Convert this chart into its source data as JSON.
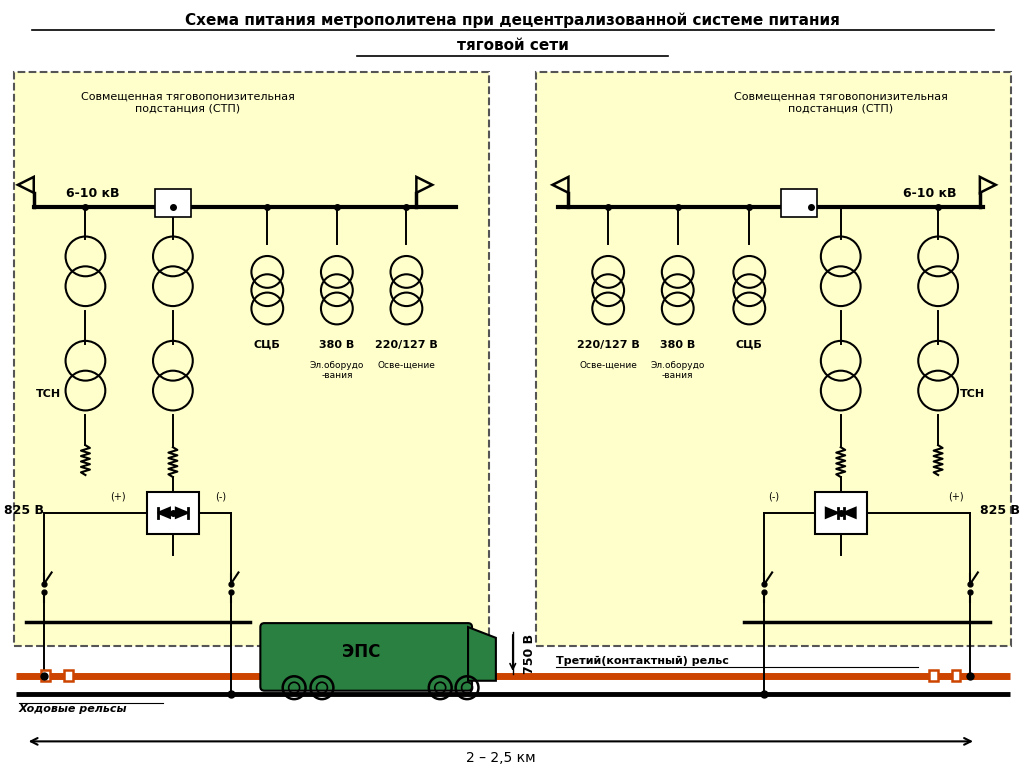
{
  "title_line1": "Схема питания метрополитена при децентрализованной системе питания",
  "title_line2": "тяговой сети",
  "box_fill": "#FFFFCC",
  "line_color": "#000000",
  "contact_rail_color": "#CC4400",
  "train_fill": "#2A8040",
  "label_tsn": "ТСН",
  "label_scb": "СЦБ",
  "label_380": "380 В",
  "label_220": "220/127 В",
  "label_elob": "Эл.оборудо\n-вания",
  "label_osv": "Осве-щение",
  "label_stp1": "Совмещенная тяговопонизительная\nподстанция (СТП)",
  "label_stp2": "Совмещенная тяговопонизительная\nподстанция (СТП)",
  "label_6_10kv_left": "6-10 кВ",
  "label_6_10kv_right": "6-10 кВ",
  "label_825_left": "825 В",
  "label_825_right": "825 В",
  "label_750v": "750 В",
  "label_eps": "ЭПС",
  "label_contact_rail": "Третий(контактный) рельс",
  "label_running_rail": "Ходовые рельсы",
  "label_distance": "2 – 2,5 км",
  "label_plus_left": "(+)",
  "label_minus_left": "(-)",
  "label_plus_right": "(+)",
  "label_minus_right": "(-)",
  "label_220_right": "220/127 В",
  "label_380_right": "380 В",
  "label_scb_right": "СЦБ",
  "label_tsn_right": "ТСН",
  "label_elob_right": "Эл.оборудо\n-вания",
  "label_osv_right": "Осве-щение"
}
